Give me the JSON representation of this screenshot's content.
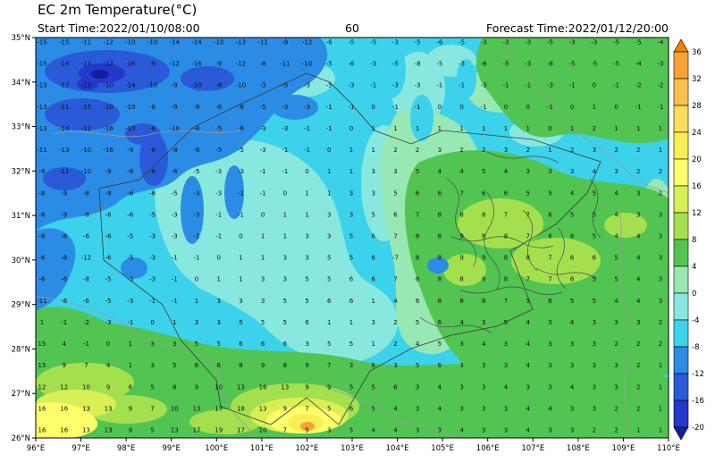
{
  "header": {
    "title": "EC 2m Temperature(°C)",
    "start_time_label": "Start Time:2022/01/10/08:00",
    "forecast_hour": "60",
    "forecast_time_label": "Forecast Time:2022/01/12/20:00"
  },
  "axes": {
    "x_ticks": [
      "96°E",
      "97°E",
      "98°E",
      "99°E",
      "100°E",
      "101°E",
      "102°E",
      "103°E",
      "104°E",
      "105°E",
      "106°E",
      "107°E",
      "108°E",
      "109°E",
      "110°E"
    ],
    "y_ticks": [
      "35°N",
      "34°N",
      "33°N",
      "32°N",
      "31°N",
      "30°N",
      "29°N",
      "28°N",
      "27°N",
      "26°N"
    ]
  },
  "colorbar": {
    "labels": [
      "36",
      "32",
      "28",
      "24",
      "20",
      "16",
      "12",
      "8",
      "4",
      "0",
      "-4",
      "-8",
      "-12",
      "-16",
      "-20"
    ],
    "segment_colors": [
      "#f7a136",
      "#fbc14d",
      "#fddd5c",
      "#f8ef52",
      "#ffff6b",
      "#d8ef56",
      "#a4e04e",
      "#52c452",
      "#98e8b4",
      "#88e8e0",
      "#3cd2ec",
      "#2b8ce6",
      "#2a5ad8",
      "#2438cc"
    ],
    "arrow_top_color": "#ef8200",
    "arrow_bottom_color": "#141e96"
  },
  "palette": {
    "cyan": "#3cd2ec",
    "pale_cyan": "#88e8e0",
    "pale_green": "#98e8b4",
    "green": "#52c452",
    "light_green": "#a4e04e",
    "yellow_green": "#d8ef56",
    "yellow": "#ffff6b",
    "deep_yellow": "#f8ef52",
    "orange": "#f7a136",
    "blue": "#2b8ce6",
    "deep_blue": "#2a5ad8",
    "navy": "#2438cc",
    "dark_navy": "#141e96",
    "number_color": "#101010"
  },
  "chart_data": {
    "type": "heatmap",
    "title": "EC 2m Temperature(°C)",
    "unit": "°C",
    "start_time": "2022/01/10/08:00",
    "forecast_hour": 60,
    "forecast_time": "2022/01/12/20:00",
    "lon_range": [
      96,
      110
    ],
    "lat_range": [
      26,
      35
    ],
    "lon_step_deg": 0.5,
    "lat_step_deg": 0.5,
    "grid_order": "rows from 35N (top) to 26N (bottom), cols from 96E (left) to 110E (right)",
    "colorbar_levels": [
      36,
      32,
      28,
      24,
      20,
      16,
      12,
      8,
      4,
      0,
      -4,
      -8,
      -12,
      -16,
      -20
    ],
    "legend_position": "right",
    "values": [
      [
        -15,
        -15,
        -11,
        -12,
        -10,
        -10,
        -14,
        -14,
        -10,
        -13,
        -11,
        -8,
        -12,
        -6,
        -5,
        -5,
        -3,
        -5,
        -6,
        -5,
        -3,
        -3,
        -3,
        -5,
        -3,
        -3,
        -5,
        -5,
        -4
      ],
      [
        -15,
        -14,
        -13,
        -13,
        -16,
        -9,
        -12,
        -16,
        -9,
        -12,
        -8,
        -11,
        -10,
        -5,
        -6,
        -3,
        -5,
        -8,
        -5,
        -3,
        -6,
        -5,
        -3,
        -8,
        -5,
        -5,
        -5,
        -4,
        -3
      ],
      [
        -13,
        -17,
        -13,
        -10,
        -14,
        -10,
        -9,
        -10,
        -8,
        -10,
        -3,
        -5,
        -3,
        -5,
        -3,
        -1,
        -3,
        -3,
        -1,
        -1,
        -3,
        -1,
        -1,
        -3,
        -1,
        0,
        -1,
        -2,
        -2
      ],
      [
        -13,
        -11,
        -15,
        -10,
        -10,
        -8,
        -9,
        -8,
        -6,
        -8,
        -5,
        -3,
        -3,
        -1,
        -1,
        0,
        -1,
        -1,
        0,
        0,
        -1,
        0,
        0,
        -1,
        0,
        1,
        0,
        -1,
        -1
      ],
      [
        -13,
        -14,
        -12,
        -16,
        -10,
        -8,
        -10,
        -8,
        -5,
        -6,
        -3,
        -3,
        -1,
        -1,
        0,
        1,
        1,
        1,
        1,
        1,
        1,
        1,
        1,
        0,
        1,
        2,
        1,
        1,
        1
      ],
      [
        -11,
        -13,
        -10,
        -16,
        -9,
        -8,
        -8,
        -6,
        -5,
        -5,
        -3,
        -1,
        -1,
        0,
        1,
        1,
        2,
        2,
        3,
        2,
        2,
        3,
        2,
        1,
        2,
        3,
        2,
        2,
        1
      ],
      [
        -9,
        -11,
        -10,
        -9,
        -8,
        -6,
        -6,
        -5,
        -3,
        -3,
        -1,
        -1,
        0,
        1,
        1,
        3,
        3,
        5,
        4,
        4,
        5,
        4,
        3,
        3,
        3,
        4,
        3,
        2,
        2
      ],
      [
        -8,
        -9,
        -8,
        -8,
        -6,
        -6,
        -5,
        -3,
        -3,
        -1,
        -1,
        0,
        1,
        1,
        3,
        3,
        5,
        6,
        6,
        7,
        6,
        6,
        5,
        5,
        4,
        5,
        4,
        3,
        2
      ],
      [
        -8,
        -9,
        -8,
        -6,
        -6,
        -5,
        -3,
        -3,
        -1,
        -1,
        0,
        1,
        1,
        3,
        3,
        5,
        6,
        7,
        8,
        8,
        8,
        7,
        7,
        6,
        5,
        5,
        4,
        3,
        3
      ],
      [
        -8,
        -8,
        -6,
        -6,
        -5,
        -3,
        -3,
        -1,
        -1,
        0,
        1,
        1,
        3,
        3,
        5,
        6,
        7,
        8,
        8,
        9,
        8,
        8,
        7,
        6,
        6,
        5,
        4,
        4,
        3
      ],
      [
        -6,
        -8,
        -12,
        -6,
        -5,
        -3,
        -1,
        -1,
        0,
        1,
        1,
        3,
        3,
        5,
        5,
        6,
        -7,
        8,
        8,
        9,
        9,
        8,
        8,
        7,
        6,
        6,
        5,
        4,
        3
      ],
      [
        -6,
        -6,
        -8,
        -5,
        -3,
        -3,
        -1,
        0,
        1,
        1,
        3,
        3,
        5,
        5,
        6,
        6,
        7,
        8,
        8,
        8,
        8,
        8,
        7,
        7,
        6,
        5,
        5,
        4,
        3
      ],
      [
        -11,
        -8,
        -6,
        -5,
        -3,
        -1,
        -1,
        1,
        3,
        3,
        3,
        5,
        5,
        6,
        6,
        1,
        4,
        6,
        8,
        8,
        8,
        7,
        5,
        6,
        5,
        5,
        4,
        4,
        3
      ],
      [
        1,
        -1,
        -2,
        -3,
        -1,
        0,
        1,
        3,
        3,
        5,
        5,
        5,
        6,
        1,
        1,
        3,
        2,
        5,
        6,
        4,
        3,
        5,
        4,
        3,
        4,
        3,
        3,
        3,
        2
      ],
      [
        15,
        4,
        -1,
        0,
        1,
        3,
        3,
        5,
        5,
        6,
        6,
        6,
        3,
        5,
        5,
        1,
        2,
        4,
        5,
        3,
        4,
        3,
        4,
        3,
        3,
        3,
        2,
        2,
        2
      ],
      [
        15,
        9,
        7,
        4,
        1,
        3,
        5,
        6,
        6,
        8,
        9,
        8,
        9,
        7,
        3,
        6,
        3,
        5,
        6,
        3,
        3,
        3,
        4,
        3,
        3,
        3,
        3,
        2,
        1
      ],
      [
        12,
        12,
        10,
        9,
        6,
        5,
        8,
        9,
        10,
        13,
        16,
        13,
        9,
        9,
        5,
        5,
        6,
        3,
        4,
        3,
        3,
        4,
        3,
        3,
        4,
        3,
        3,
        2,
        1
      ],
      [
        16,
        16,
        13,
        13,
        9,
        7,
        10,
        13,
        17,
        18,
        13,
        9,
        7,
        5,
        6,
        5,
        4,
        3,
        4,
        3,
        3,
        3,
        4,
        4,
        3,
        3,
        2,
        2,
        1
      ],
      [
        16,
        16,
        13,
        13,
        9,
        5,
        13,
        17,
        19,
        17,
        10,
        7,
        5,
        3,
        5,
        4,
        4,
        3,
        3,
        4,
        3,
        3,
        4,
        3,
        3,
        2,
        2,
        1,
        1
      ]
    ]
  }
}
